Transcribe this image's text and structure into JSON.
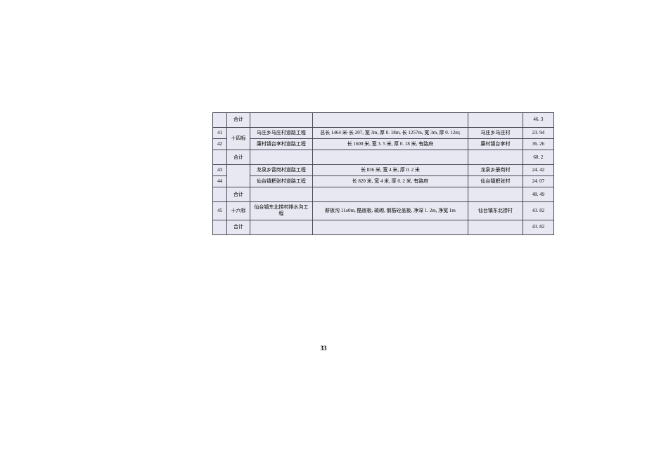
{
  "table": {
    "background_color": "#e8e8f2",
    "border_color": "#444452",
    "font_size": 7,
    "rows": [
      {
        "type": "subtotal",
        "label": "合计",
        "value": "46. 3"
      },
      {
        "type": "data",
        "num": "41",
        "section": "十四标",
        "project": "马庄乡马庄村道路工程",
        "desc": "总长 1464 米·长 207, 宽 3m, 厚 0. 18m, 长 1257m, 宽 3m, 厚 0. 12m;",
        "location": "马庄乡马庄村",
        "value": "23. 94"
      },
      {
        "type": "data",
        "num": "42",
        "project": "廉村镇台李村道路工程",
        "desc": "长 1600 米, 宽 3. 5 米, 厚 0. 18 米, 有路府",
        "location": "廉村镇台李村",
        "value": "36. 26"
      },
      {
        "type": "subtotal",
        "label": "合计",
        "value": "60. 2"
      },
      {
        "type": "data",
        "num": "43",
        "section": "",
        "project": "龙泉乡雷岗村道路工程",
        "desc": "长 836 米, 宽 4 米, 厚 0. 2 米",
        "location": "龙泉乡册岗村",
        "value": "24. 42"
      },
      {
        "type": "data",
        "num": "44",
        "project": "仙台镇耙张村道路工程",
        "desc": "长 820 米, 宽 4 米, 厚 0. 2 米, 有路府",
        "location": "仙台镇耙张村",
        "value": "24. 07"
      },
      {
        "type": "subtotal",
        "label": "合计",
        "value": "48. 49"
      },
      {
        "type": "data",
        "num": "45",
        "section": "十六标",
        "project": "仙台镇东北捞村排水沟工程",
        "desc": "薪板沟 11o0m, 酷底板, 硫砌, 钢筋砼盖板, 净深 1. 2m, 净宽 1m",
        "location": "仙台镇东北捞村",
        "value": "43. 82"
      },
      {
        "type": "subtotal",
        "label": "合计",
        "value": "43. 82"
      }
    ]
  },
  "page_number": "33"
}
